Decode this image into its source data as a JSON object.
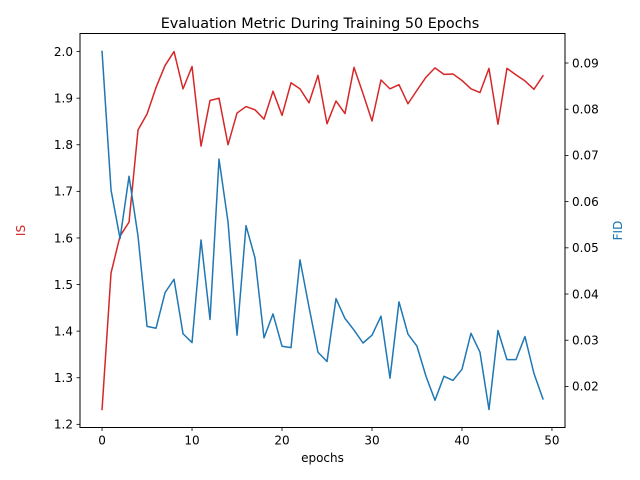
{
  "chart_data": {
    "type": "line",
    "title": "Evaluation Metric During Training 50 Epochs",
    "xlabel": "epochs",
    "x": [
      0,
      1,
      2,
      3,
      4,
      5,
      6,
      7,
      8,
      9,
      10,
      11,
      12,
      13,
      14,
      15,
      16,
      17,
      18,
      19,
      20,
      21,
      22,
      23,
      24,
      25,
      26,
      27,
      28,
      29,
      30,
      31,
      32,
      33,
      34,
      35,
      36,
      37,
      38,
      39,
      40,
      41,
      42,
      43,
      44,
      45,
      46,
      47,
      48,
      49
    ],
    "xlim": [
      -2.45,
      51.45
    ],
    "xticks": [
      "0",
      "10",
      "20",
      "30",
      "40",
      "50"
    ],
    "series": [
      {
        "name": "IS",
        "axis": "left",
        "color": "#d62728",
        "values": [
          1.232,
          1.525,
          1.604,
          1.634,
          1.832,
          1.866,
          1.923,
          1.97,
          2.0,
          1.92,
          1.968,
          1.797,
          1.895,
          1.9,
          1.8,
          1.868,
          1.882,
          1.875,
          1.855,
          1.915,
          1.863,
          1.933,
          1.92,
          1.89,
          1.949,
          1.845,
          1.894,
          1.867,
          1.966,
          1.91,
          1.851,
          1.939,
          1.92,
          1.929,
          1.888,
          1.917,
          1.945,
          1.965,
          1.951,
          1.952,
          1.938,
          1.92,
          1.912,
          1.964,
          1.844,
          1.964,
          1.95,
          1.937,
          1.919,
          1.948
        ]
      },
      {
        "name": "FID",
        "axis": "right",
        "color": "#1f77b4",
        "values": [
          0.0925,
          0.0625,
          0.052,
          0.0655,
          0.0525,
          0.033,
          0.0326,
          0.0403,
          0.0432,
          0.0314,
          0.0295,
          0.0517,
          0.0345,
          0.0692,
          0.0556,
          0.0311,
          0.0548,
          0.0478,
          0.0305,
          0.0357,
          0.0287,
          0.0284,
          0.0474,
          0.0372,
          0.0274,
          0.0254,
          0.039,
          0.0347,
          0.0322,
          0.0294,
          0.0311,
          0.0352,
          0.0218,
          0.0383,
          0.0313,
          0.0287,
          0.0222,
          0.017,
          0.0222,
          0.0213,
          0.0237,
          0.0315,
          0.0274,
          0.015,
          0.0321,
          0.0258,
          0.0258,
          0.0308,
          0.0228,
          0.0173
        ]
      }
    ],
    "ylabel_left": "IS",
    "ylim_left": [
      1.1932,
      2.0388
    ],
    "yticks_left": [
      "1.2",
      "1.3",
      "1.4",
      "1.5",
      "1.6",
      "1.7",
      "1.8",
      "1.9",
      "2.0"
    ],
    "ylabel_right": "FID",
    "ylim_right": [
      0.01111,
      0.09639
    ],
    "yticks_right": [
      "0.02",
      "0.03",
      "0.04",
      "0.05",
      "0.06",
      "0.07",
      "0.08",
      "0.09"
    ],
    "grid": false,
    "legend": "none"
  }
}
